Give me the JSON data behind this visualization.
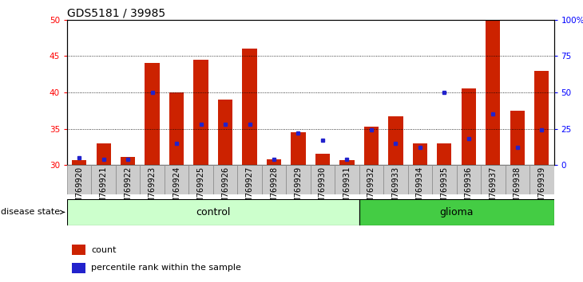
{
  "title": "GDS5181 / 39985",
  "samples": [
    "GSM769920",
    "GSM769921",
    "GSM769922",
    "GSM769923",
    "GSM769924",
    "GSM769925",
    "GSM769926",
    "GSM769927",
    "GSM769928",
    "GSM769929",
    "GSM769930",
    "GSM769931",
    "GSM769932",
    "GSM769933",
    "GSM769934",
    "GSM769935",
    "GSM769936",
    "GSM769937",
    "GSM769938",
    "GSM769939"
  ],
  "counts": [
    30.7,
    33.0,
    31.1,
    44.0,
    40.0,
    44.5,
    39.0,
    46.0,
    30.8,
    34.5,
    31.6,
    30.7,
    35.3,
    36.7,
    33.0,
    33.0,
    40.5,
    50.0,
    37.5,
    43.0
  ],
  "percentile": [
    5,
    4,
    4,
    50,
    15,
    28,
    28,
    28,
    4,
    22,
    17,
    4,
    24,
    15,
    12,
    50,
    18,
    35,
    12,
    24
  ],
  "control_count": 12,
  "glioma_count": 8,
  "ylim_left": [
    30,
    50
  ],
  "ylim_right": [
    0,
    100
  ],
  "yticks_left": [
    30,
    35,
    40,
    45,
    50
  ],
  "yticks_right": [
    0,
    25,
    50,
    75,
    100
  ],
  "bar_color": "#cc2200",
  "dot_color": "#2222cc",
  "control_color_light": "#ccffcc",
  "control_color_dark": "#55dd55",
  "glioma_color": "#44cc44",
  "bg_color": "#cccccc",
  "title_fontsize": 10,
  "tick_fontsize": 7.5
}
